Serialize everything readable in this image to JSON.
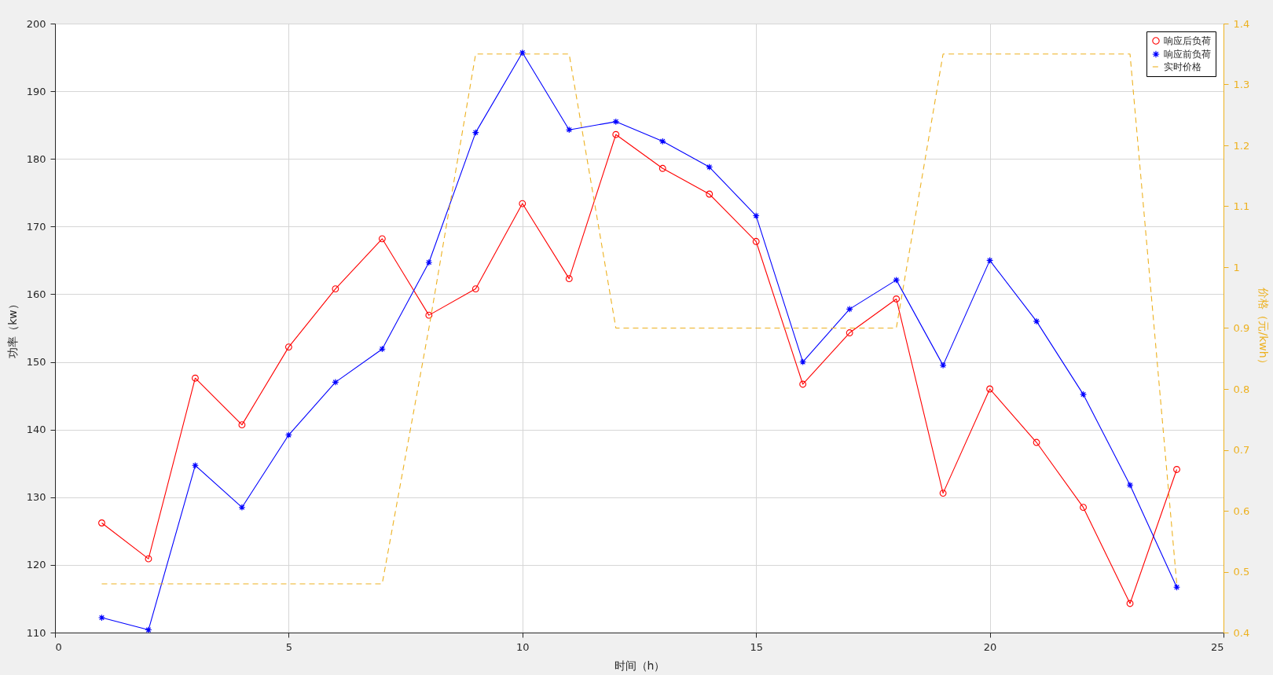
{
  "chart_data": {
    "type": "line",
    "xlabel": "时间（h）",
    "ylabel": "功率（kw）",
    "y2label": "价格（元/kwh）",
    "x": [
      1,
      2,
      3,
      4,
      5,
      6,
      7,
      8,
      9,
      10,
      11,
      12,
      13,
      14,
      15,
      16,
      17,
      18,
      19,
      20,
      21,
      22,
      23,
      24
    ],
    "series": [
      {
        "name": "响应后负荷",
        "color": "#ff0000",
        "marker": "circle",
        "line_style": "solid",
        "values": [
          126.2,
          120.9,
          147.6,
          140.7,
          152.2,
          160.8,
          168.2,
          156.9,
          160.8,
          173.4,
          162.3,
          183.6,
          178.6,
          174.8,
          167.8,
          146.7,
          154.3,
          159.3,
          130.6,
          146.0,
          138.1,
          128.5,
          114.3,
          134.1
        ]
      },
      {
        "name": "响应前负荷",
        "color": "#0000ff",
        "marker": "star",
        "line_style": "solid",
        "values": [
          112.2,
          110.4,
          134.7,
          128.5,
          139.2,
          147.0,
          151.9,
          164.7,
          183.9,
          195.7,
          184.3,
          185.5,
          182.6,
          178.8,
          171.6,
          150.0,
          157.8,
          162.1,
          149.5,
          165.0,
          156.0,
          145.2,
          131.8,
          116.7
        ]
      },
      {
        "name": "实时价格",
        "color": "#edb120",
        "marker": "none",
        "line_style": "dashed",
        "axis": "y2",
        "values": [
          0.48,
          0.48,
          0.48,
          0.48,
          0.48,
          0.48,
          0.48,
          0.9,
          1.35,
          1.35,
          1.35,
          0.9,
          0.9,
          0.9,
          0.9,
          0.9,
          0.9,
          0.9,
          1.35,
          1.35,
          1.35,
          1.35,
          1.35,
          0.48
        ]
      }
    ],
    "xlim": [
      0,
      25
    ],
    "xticks": [
      0,
      5,
      10,
      15,
      20,
      25
    ],
    "ylim": [
      110,
      200
    ],
    "yticks": [
      110,
      120,
      130,
      140,
      150,
      160,
      170,
      180,
      190,
      200
    ],
    "y2lim": [
      0.4,
      1.4
    ],
    "y2ticks": [
      0.4,
      0.5,
      0.6,
      0.7,
      0.8,
      0.9,
      1,
      1.1,
      1.2,
      1.3,
      1.4
    ],
    "grid": true,
    "legend": "top right"
  }
}
